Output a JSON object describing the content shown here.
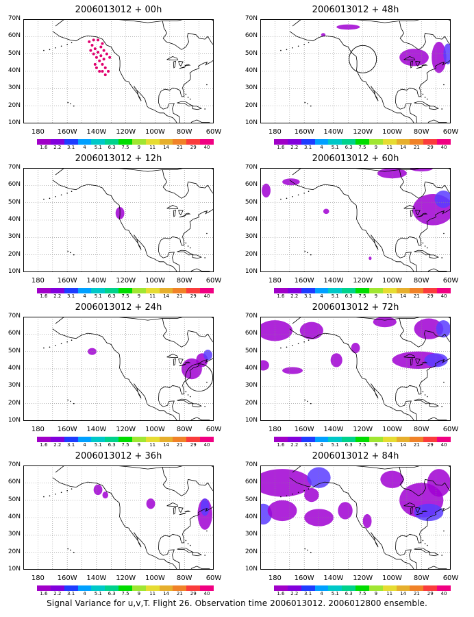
{
  "panels": [
    {
      "title": "2006013012 + 00h",
      "col": 0,
      "row": 0
    },
    {
      "title": "2006013012 + 12h",
      "col": 0,
      "row": 1
    },
    {
      "title": "2006013012 + 24h",
      "col": 0,
      "row": 2
    },
    {
      "title": "2006013012 + 36h",
      "col": 0,
      "row": 3
    },
    {
      "title": "2006013012 + 48h",
      "col": 1,
      "row": 0
    },
    {
      "title": "2006013012 + 60h",
      "col": 1,
      "row": 1
    },
    {
      "title": "2006013012 + 72h",
      "col": 1,
      "row": 2
    },
    {
      "title": "2006013012 + 84h",
      "col": 1,
      "row": 3
    }
  ],
  "lat_labels": [
    "70N",
    "60N",
    "50N",
    "40N",
    "30N",
    "20N",
    "10N"
  ],
  "lon_labels": [
    "180",
    "160W",
    "140W",
    "120W",
    "100W",
    "80W",
    "60W"
  ],
  "colorbar": {
    "labels": [
      "1.6",
      "2.2",
      "3.1",
      "4",
      "5.1",
      "6.3",
      "7.5",
      "9",
      "11",
      "14",
      "21",
      "29",
      "40"
    ],
    "colors": [
      "#a000c8",
      "#8200dc",
      "#1e3cff",
      "#00a0ff",
      "#00c8c8",
      "#00d28c",
      "#00dc00",
      "#a0e632",
      "#e6dc32",
      "#e6af2d",
      "#f08228",
      "#fa3c3c",
      "#f00082"
    ]
  },
  "caption": "Signal Variance for u,v,T. Flight 26. Observation time 2006013012. 2006012800 ensemble."
}
